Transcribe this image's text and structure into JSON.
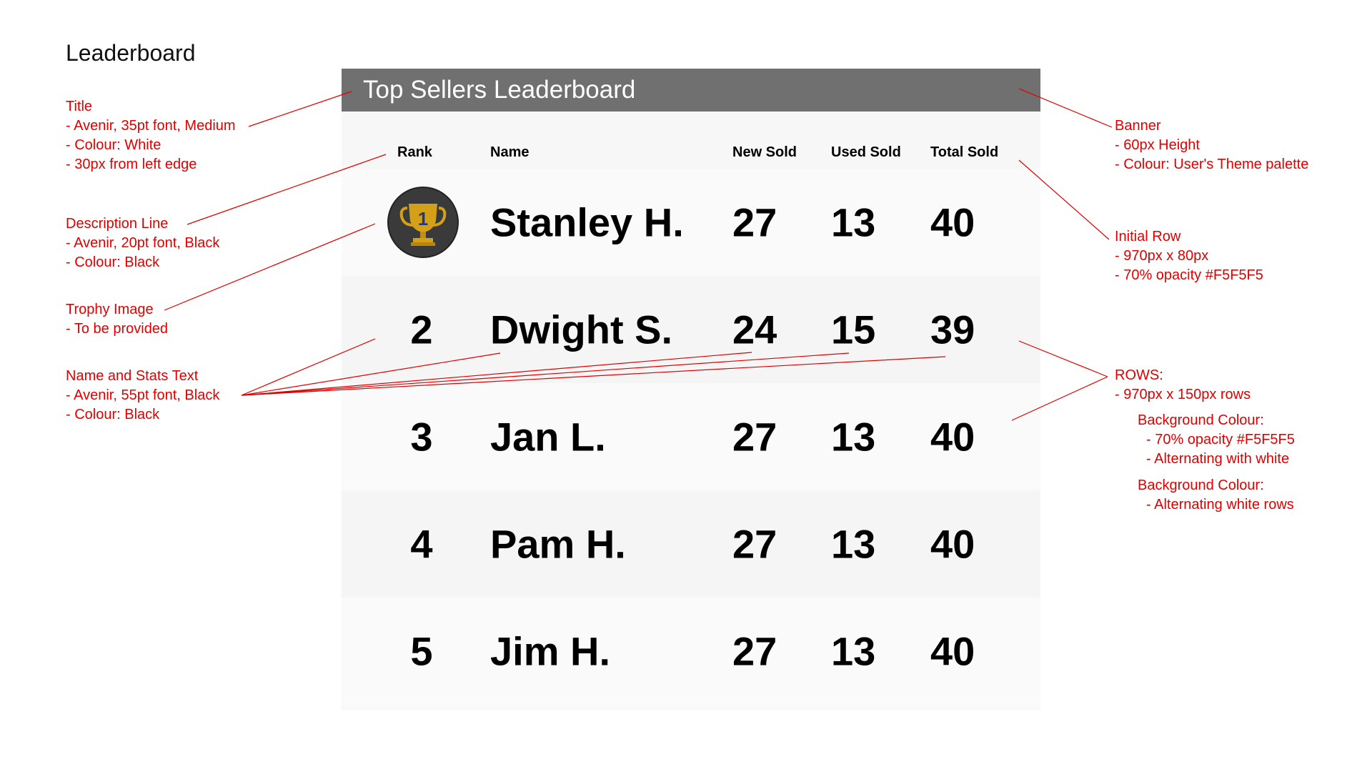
{
  "page_title": "Leaderboard",
  "banner_title": "Top Sellers Leaderboard",
  "columns": {
    "rank": "Rank",
    "name": "Name",
    "new_sold": "New Sold",
    "used_sold": "Used Sold",
    "total_sold": "Total Sold"
  },
  "rows": [
    {
      "rank": "1",
      "name": "Stanley H.",
      "new_sold": "27",
      "used_sold": "13",
      "total_sold": "40",
      "trophy": true
    },
    {
      "rank": "2",
      "name": "Dwight S.",
      "new_sold": "24",
      "used_sold": "15",
      "total_sold": "39"
    },
    {
      "rank": "3",
      "name": "Jan L.",
      "new_sold": "27",
      "used_sold": "13",
      "total_sold": "40"
    },
    {
      "rank": "4",
      "name": "Pam H.",
      "new_sold": "27",
      "used_sold": "13",
      "total_sold": "40"
    },
    {
      "rank": "5",
      "name": "Jim H.",
      "new_sold": "27",
      "used_sold": "13",
      "total_sold": "40"
    }
  ],
  "annotations": {
    "title": [
      "Title",
      "- Avenir, 35pt font, Medium",
      "- Colour: White",
      "- 30px from left edge"
    ],
    "description": [
      "Description Line",
      "- Avenir, 20pt font, Black",
      "- Colour: Black"
    ],
    "trophy": [
      "Trophy Image",
      "- To be provided"
    ],
    "name_stats": [
      "Name and Stats Text",
      "- Avenir, 55pt font, Black",
      "- Colour: Black"
    ],
    "banner": [
      "Banner",
      "- 60px Height",
      "- Colour: User's Theme palette"
    ],
    "initial_row": [
      "Initial Row",
      "- 970px x 80px",
      "- 70% opacity #F5F5F5"
    ],
    "rows": [
      "ROWS:",
      "- 970px x 150px rows"
    ],
    "bg1": [
      "Background Colour:",
      "- 70% opacity #F5F5F5",
      "- Alternating with white"
    ],
    "bg2": [
      "Background Colour:",
      "- Alternating white rows"
    ]
  },
  "colors": {
    "banner": "#707070",
    "annotation": "#e00000",
    "row_alt": "#F5F5F5",
    "trophy_bg": "#3a3a3a",
    "trophy_gold": "#d4a017"
  },
  "icons": {
    "trophy": "trophy-icon"
  }
}
